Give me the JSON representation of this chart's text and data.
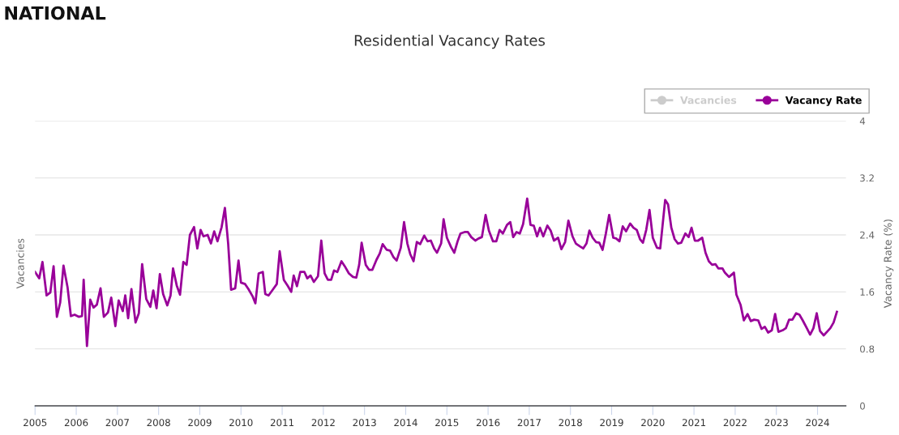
{
  "chart_data": {
    "type": "line",
    "title": "Residential Vacancy Rates",
    "annotations": [
      "NATIONAL"
    ],
    "ylabel": "Vacancies",
    "y2label": "Vacancy Rate (%)",
    "xlim": [
      2005,
      2024.69
    ],
    "xticks": [
      2005,
      2006,
      2007,
      2008,
      2009,
      2010,
      2011,
      2012,
      2013,
      2014,
      2015,
      2016,
      2017,
      2018,
      2019,
      2020,
      2021,
      2022,
      2023,
      2024
    ],
    "y2lim": [
      0,
      4
    ],
    "y2ticks": [
      0,
      0.8,
      1.6,
      2.4,
      3.2,
      4
    ],
    "grid": "y",
    "legend": "top right",
    "marker": "none",
    "line_style": "solid",
    "series": [
      {
        "name": "Vacancies",
        "color": "#cccccc"
      },
      {
        "name": "Vacancy Rate",
        "color": "#990099",
        "axis": "y2",
        "x": [
          2005.0,
          2005.1,
          2005.18,
          2005.28,
          2005.37,
          2005.45,
          2005.53,
          2005.61,
          2005.69,
          2005.79,
          2005.87,
          2005.96,
          2006.06,
          2006.14,
          2006.18,
          2006.26,
          2006.34,
          2006.42,
          2006.5,
          2006.59,
          2006.67,
          2006.77,
          2006.85,
          2006.95,
          2007.03,
          2007.13,
          2007.19,
          2007.26,
          2007.34,
          2007.44,
          2007.52,
          2007.6,
          2007.7,
          2007.8,
          2007.87,
          2007.95,
          2008.03,
          2008.11,
          2008.21,
          2008.29,
          2008.35,
          2008.44,
          2008.52,
          2008.6,
          2008.68,
          2008.76,
          2008.86,
          2008.94,
          2009.02,
          2009.09,
          2009.19,
          2009.27,
          2009.35,
          2009.43,
          2009.53,
          2009.61,
          2009.69,
          2009.76,
          2009.86,
          2009.94,
          2010.0,
          2010.1,
          2010.18,
          2010.28,
          2010.35,
          2010.43,
          2010.53,
          2010.59,
          2010.67,
          2010.77,
          2010.87,
          2010.94,
          2011.04,
          2011.14,
          2011.22,
          2011.28,
          2011.36,
          2011.44,
          2011.54,
          2011.61,
          2011.69,
          2011.77,
          2011.87,
          2011.95,
          2012.03,
          2012.11,
          2012.19,
          2012.26,
          2012.34,
          2012.44,
          2012.52,
          2012.62,
          2012.72,
          2012.8,
          2012.87,
          2012.93,
          2013.03,
          2013.11,
          2013.19,
          2013.29,
          2013.37,
          2013.44,
          2013.54,
          2013.62,
          2013.7,
          2013.78,
          2013.88,
          2013.96,
          2014.04,
          2014.11,
          2014.19,
          2014.27,
          2014.35,
          2014.45,
          2014.53,
          2014.61,
          2014.69,
          2014.76,
          2014.86,
          2014.92,
          2015.0,
          2015.1,
          2015.18,
          2015.26,
          2015.33,
          2015.43,
          2015.51,
          2015.59,
          2015.69,
          2015.77,
          2015.85,
          2015.94,
          2016.02,
          2016.12,
          2016.2,
          2016.28,
          2016.36,
          2016.46,
          2016.54,
          2016.61,
          2016.69,
          2016.77,
          2016.85,
          2016.95,
          2017.03,
          2017.11,
          2017.19,
          2017.26,
          2017.34,
          2017.44,
          2017.52,
          2017.6,
          2017.7,
          2017.78,
          2017.87,
          2017.95,
          2018.05,
          2018.13,
          2018.23,
          2018.31,
          2018.39,
          2018.46,
          2018.54,
          2018.62,
          2018.7,
          2018.78,
          2018.86,
          2018.94,
          2019.04,
          2019.11,
          2019.19,
          2019.27,
          2019.35,
          2019.45,
          2019.53,
          2019.61,
          2019.69,
          2019.76,
          2019.84,
          2019.92,
          2020.0,
          2020.1,
          2020.18,
          2020.3,
          2020.37,
          2020.45,
          2020.53,
          2020.61,
          2020.69,
          2020.79,
          2020.87,
          2020.94,
          2021.02,
          2021.1,
          2021.2,
          2021.28,
          2021.36,
          2021.44,
          2021.52,
          2021.59,
          2021.69,
          2021.75,
          2021.85,
          2021.97,
          2022.03,
          2022.13,
          2022.21,
          2022.3,
          2022.38,
          2022.46,
          2022.56,
          2022.64,
          2022.72,
          2022.8,
          2022.89,
          2022.97,
          2023.05,
          2023.15,
          2023.23,
          2023.31,
          2023.39,
          2023.48,
          2023.56,
          2023.64,
          2023.74,
          2023.82,
          2023.9,
          2023.98,
          2024.06,
          2024.15,
          2024.23,
          2024.31,
          2024.39,
          2024.47
        ],
        "values": [
          1.88,
          1.79,
          2.02,
          1.55,
          1.59,
          1.96,
          1.25,
          1.45,
          1.97,
          1.66,
          1.26,
          1.28,
          1.25,
          1.26,
          1.77,
          0.84,
          1.49,
          1.38,
          1.42,
          1.65,
          1.25,
          1.31,
          1.52,
          1.12,
          1.48,
          1.33,
          1.55,
          1.23,
          1.64,
          1.17,
          1.3,
          1.99,
          1.5,
          1.39,
          1.62,
          1.37,
          1.85,
          1.57,
          1.41,
          1.55,
          1.93,
          1.69,
          1.56,
          2.02,
          1.98,
          2.4,
          2.51,
          2.21,
          2.47,
          2.38,
          2.4,
          2.28,
          2.45,
          2.31,
          2.51,
          2.78,
          2.27,
          1.63,
          1.65,
          2.04,
          1.73,
          1.71,
          1.64,
          1.54,
          1.44,
          1.86,
          1.88,
          1.57,
          1.55,
          1.63,
          1.71,
          2.17,
          1.77,
          1.68,
          1.6,
          1.83,
          1.68,
          1.88,
          1.88,
          1.79,
          1.83,
          1.74,
          1.82,
          2.32,
          1.86,
          1.77,
          1.77,
          1.9,
          1.88,
          2.03,
          1.96,
          1.86,
          1.81,
          1.8,
          1.98,
          2.29,
          1.98,
          1.91,
          1.91,
          2.05,
          2.14,
          2.27,
          2.19,
          2.18,
          2.09,
          2.04,
          2.22,
          2.58,
          2.28,
          2.13,
          2.03,
          2.3,
          2.27,
          2.39,
          2.31,
          2.32,
          2.21,
          2.15,
          2.28,
          2.62,
          2.36,
          2.23,
          2.15,
          2.31,
          2.42,
          2.44,
          2.44,
          2.37,
          2.32,
          2.35,
          2.37,
          2.68,
          2.46,
          2.31,
          2.31,
          2.47,
          2.42,
          2.54,
          2.58,
          2.37,
          2.44,
          2.42,
          2.55,
          2.91,
          2.54,
          2.53,
          2.38,
          2.5,
          2.38,
          2.53,
          2.46,
          2.32,
          2.36,
          2.2,
          2.3,
          2.6,
          2.38,
          2.28,
          2.24,
          2.21,
          2.28,
          2.46,
          2.36,
          2.3,
          2.29,
          2.19,
          2.42,
          2.68,
          2.36,
          2.35,
          2.31,
          2.52,
          2.45,
          2.56,
          2.5,
          2.47,
          2.34,
          2.29,
          2.47,
          2.75,
          2.36,
          2.22,
          2.21,
          2.89,
          2.83,
          2.5,
          2.34,
          2.28,
          2.29,
          2.42,
          2.37,
          2.5,
          2.32,
          2.32,
          2.36,
          2.15,
          2.03,
          1.98,
          1.99,
          1.93,
          1.93,
          1.87,
          1.81,
          1.87,
          1.56,
          1.42,
          1.2,
          1.29,
          1.19,
          1.21,
          1.2,
          1.08,
          1.11,
          1.03,
          1.06,
          1.29,
          1.04,
          1.06,
          1.09,
          1.21,
          1.21,
          1.3,
          1.28,
          1.2,
          1.09,
          1.0,
          1.09,
          1.3,
          1.05,
          0.99,
          1.04,
          1.09,
          1.17,
          1.32
        ]
      }
    ]
  }
}
